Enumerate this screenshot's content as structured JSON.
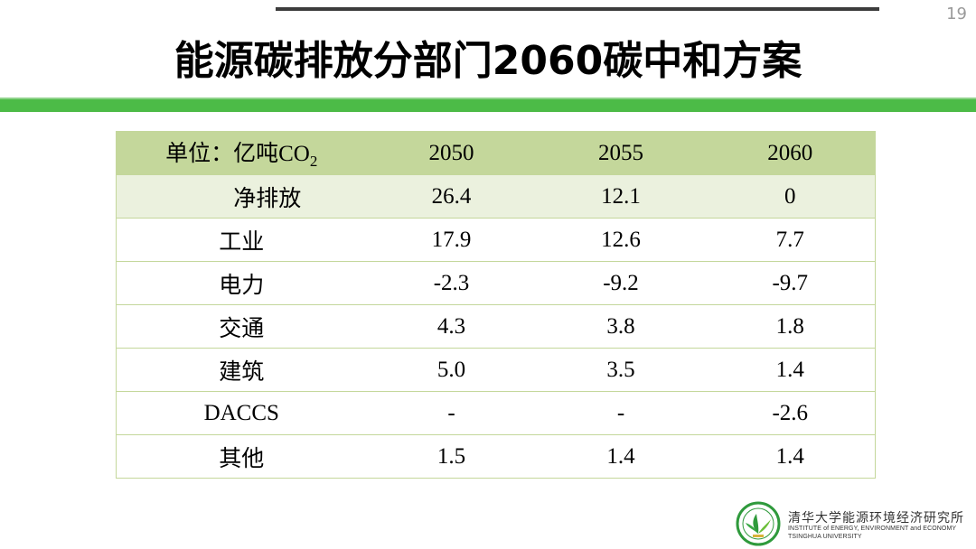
{
  "slide": {
    "page_number": "19",
    "title": "能源碳排放分部门2060碳中和方案"
  },
  "table": {
    "unit_label": "单位：亿吨CO",
    "unit_subscript": "2",
    "columns": [
      "2050",
      "2055",
      "2060"
    ],
    "rows": [
      {
        "label": "净排放",
        "values": [
          "26.4",
          "12.1",
          "0"
        ]
      },
      {
        "label": "工业",
        "values": [
          "17.9",
          "12.6",
          "7.7"
        ]
      },
      {
        "label": "电力",
        "values": [
          "-2.3",
          "-9.2",
          "-9.7"
        ]
      },
      {
        "label": "交通",
        "values": [
          "4.3",
          "3.8",
          "1.8"
        ]
      },
      {
        "label": "建筑",
        "values": [
          "5.0",
          "3.5",
          "1.4"
        ]
      },
      {
        "label": "DACCS",
        "values": [
          "-",
          "-",
          "-2.6"
        ]
      },
      {
        "label": "其他",
        "values": [
          "1.5",
          "1.4",
          "1.4"
        ]
      }
    ]
  },
  "logo": {
    "icon": "institute-emblem-icon",
    "name_cn": "清华大学能源环境经济研究所",
    "name_en": "INSTITUTE of ENERGY, ENVIRONMENT and ECONOMY",
    "university": "TSINGHUA UNIVERSITY"
  },
  "colors": {
    "accent_green": "#4cbb47",
    "header_row_bg": "#c4d79b",
    "highlight_row_bg": "#ebf1de",
    "grid_line": "#c4d79b",
    "top_rule": "#3c3c3c"
  }
}
